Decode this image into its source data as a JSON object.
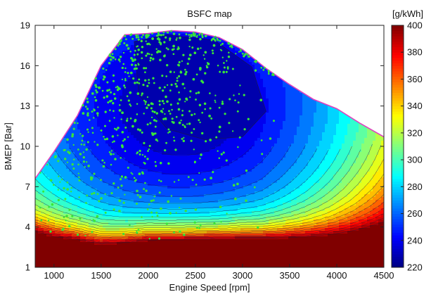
{
  "chart_data": {
    "type": "heatmap",
    "subtype": "filled-contour with scatter overlay",
    "title": "BSFC map",
    "xlabel": "Engine Speed [rpm]",
    "ylabel": "BMEP [Bar]",
    "xlim": [
      800,
      4500
    ],
    "ylim": [
      1,
      19
    ],
    "xticks": [
      1000,
      1500,
      2000,
      2500,
      3000,
      3500,
      4000,
      4500
    ],
    "yticks": [
      1,
      4,
      7,
      10,
      13,
      16,
      19
    ],
    "grid": false,
    "colorbar": {
      "label": "[g/kWh]",
      "range": [
        220,
        400
      ],
      "ticks": [
        220,
        240,
        260,
        280,
        300,
        320,
        340,
        360,
        380,
        400
      ],
      "colormap": "jet",
      "position": "right"
    },
    "full_load_curve": {
      "color": "#e040c0",
      "x": [
        800,
        1000,
        1250,
        1500,
        1750,
        2000,
        2250,
        2500,
        2750,
        3000,
        3250,
        3500,
        3750,
        4000,
        4250,
        4500
      ],
      "y": [
        7.6,
        9.6,
        12.3,
        16.0,
        18.3,
        18.4,
        18.6,
        18.5,
        18.1,
        17.2,
        15.8,
        14.6,
        13.5,
        12.8,
        11.7,
        10.7
      ]
    },
    "contour_floor": {
      "x": [
        800,
        1000,
        1250,
        1500,
        1750,
        2000,
        2500,
        3000,
        3500,
        4000,
        4500
      ],
      "y": [
        2.7,
        2.45,
        2.3,
        2.05,
        2.25,
        2.5,
        2.6,
        2.6,
        2.4,
        2.15,
        1.95
      ],
      "value": 400
    },
    "low_load_floor": {
      "x": [
        800,
        1000,
        1500,
        2000,
        2500,
        3000,
        3500,
        4000,
        4500
      ],
      "y": [
        2.1,
        2.05,
        2.0,
        2.2,
        2.4,
        2.6,
        2.85,
        3.2,
        3.6
      ],
      "value": 400
    },
    "min_zone": {
      "x": [
        1850,
        2200,
        2700,
        3100,
        3250,
        3000,
        2600,
        2200,
        1900
      ],
      "y": [
        17.8,
        18.3,
        17.9,
        15.9,
        12.6,
        10.7,
        10.5,
        11.3,
        13.8
      ],
      "value": 228
    },
    "operating_points": {
      "color": "#39e639",
      "seed": 7,
      "count": 650
    }
  }
}
